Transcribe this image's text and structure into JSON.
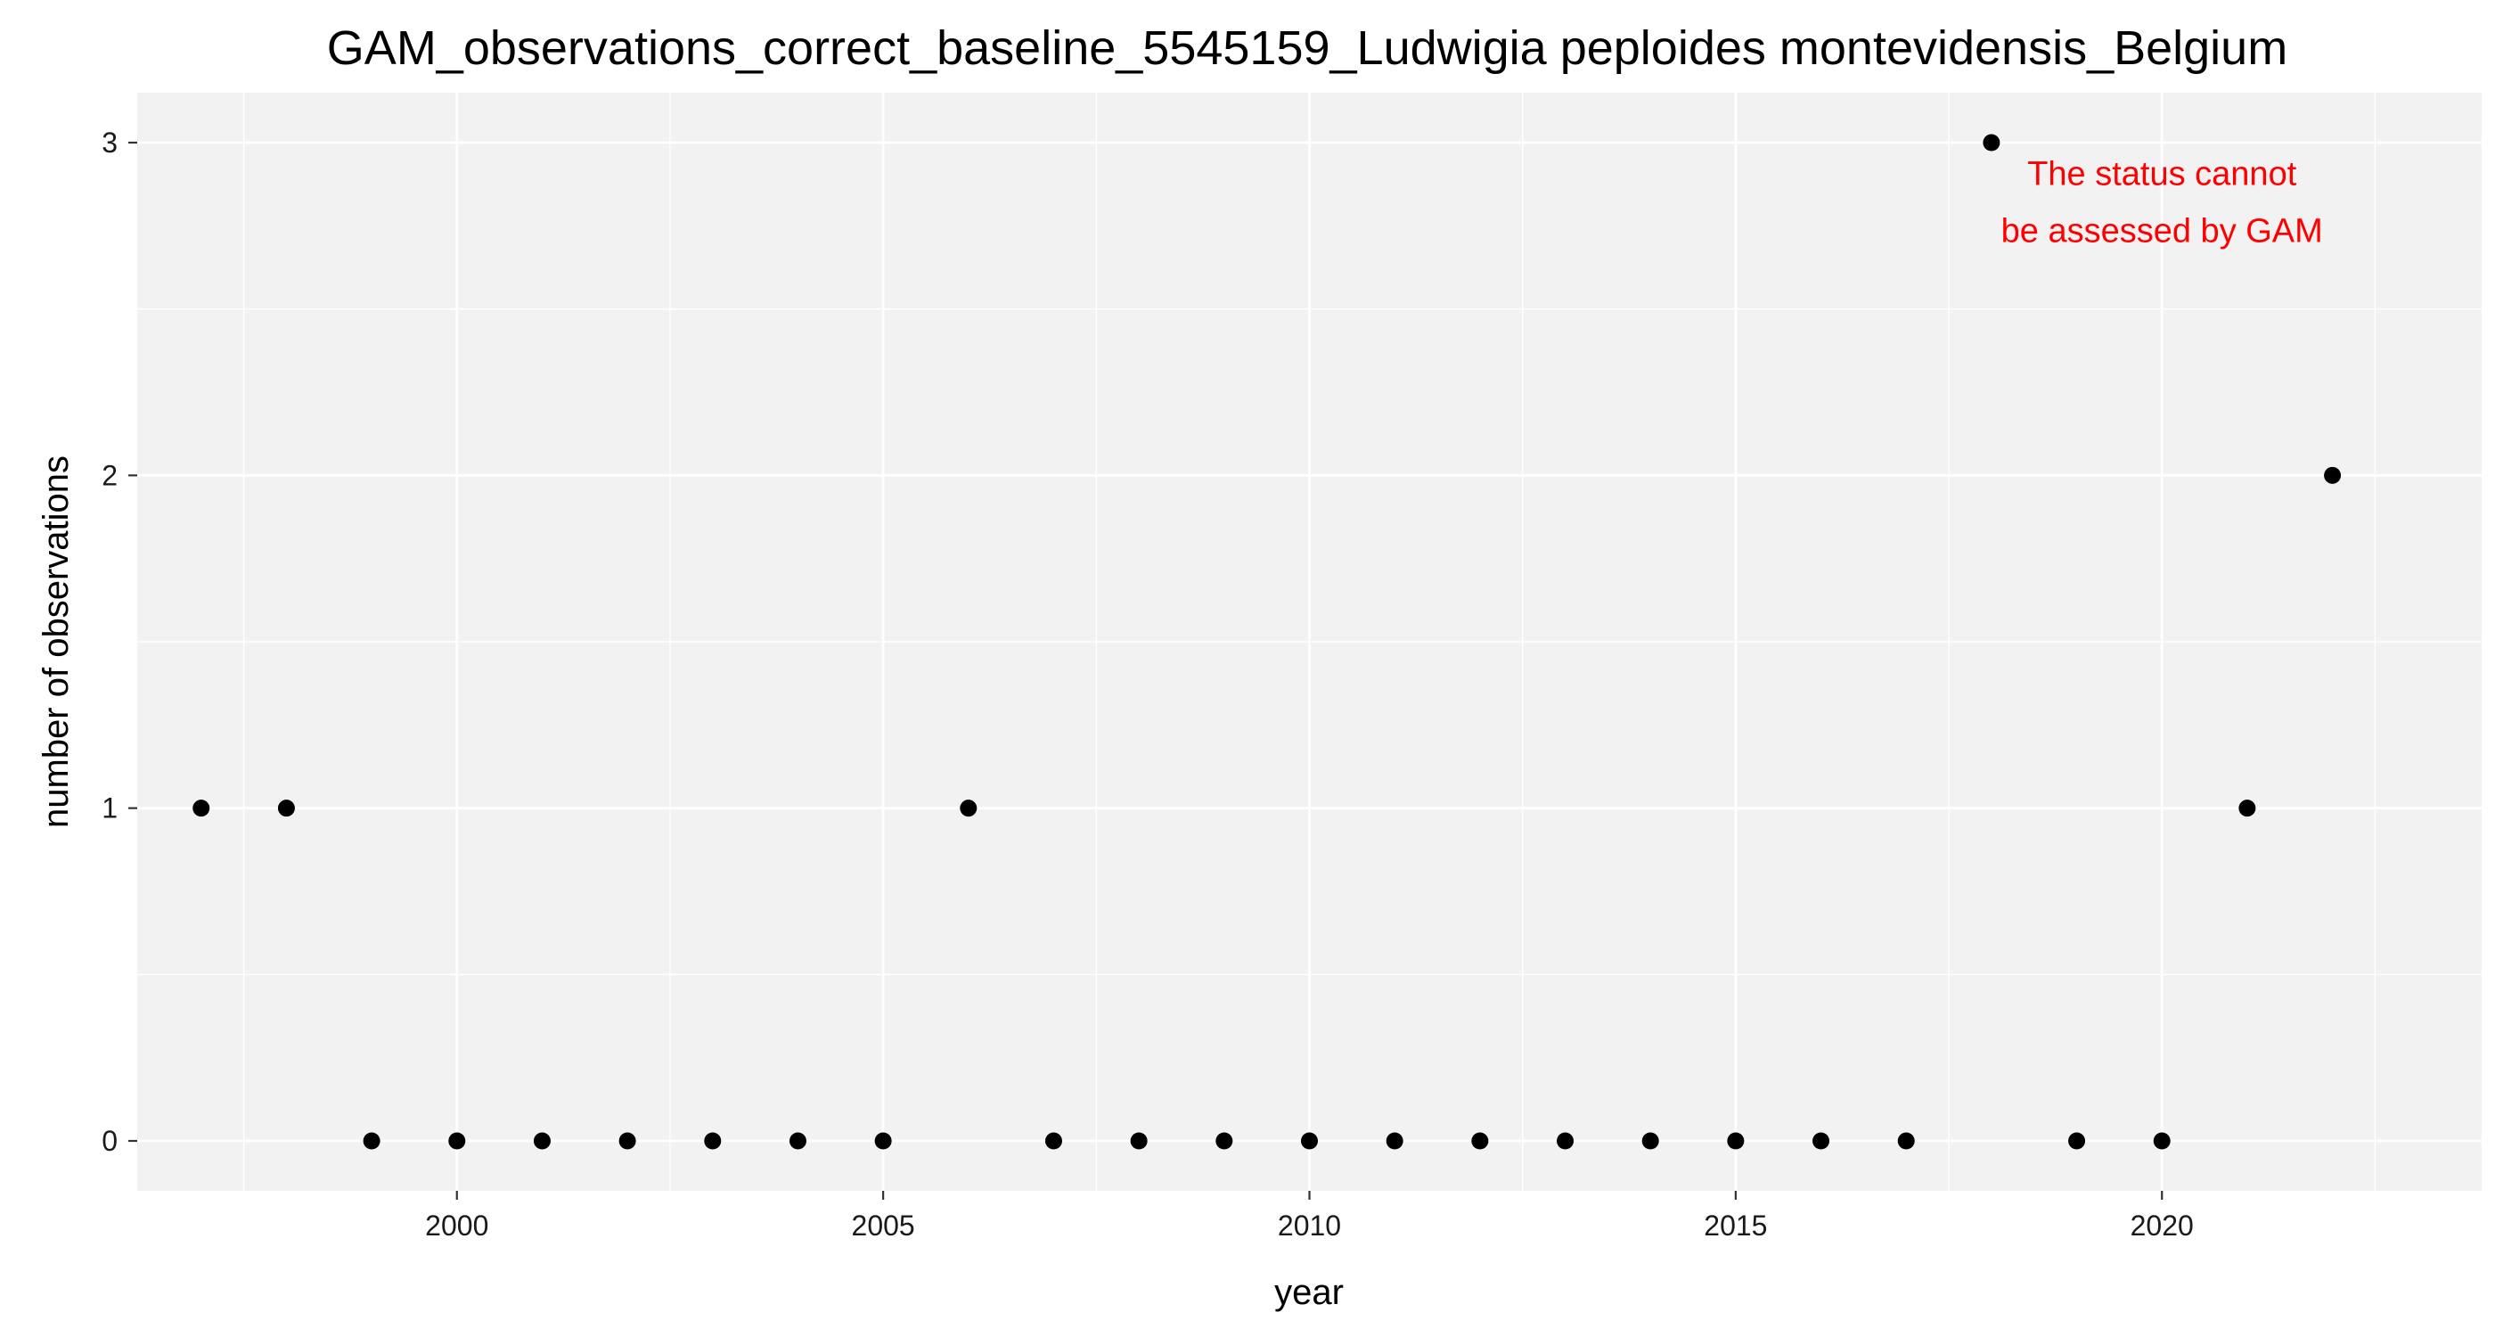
{
  "chart_data": {
    "type": "scatter",
    "title": "GAM_observations_correct_baseline_5545159_Ludwigia peploides montevidensis_Belgium",
    "xlabel": "year",
    "ylabel": "number of observations",
    "xlim": [
      1996.25,
      2023.75
    ],
    "ylim": [
      -0.15,
      3.15
    ],
    "x_ticks": [
      2000,
      2005,
      2010,
      2015,
      2020
    ],
    "x_tick_labels": [
      "2000",
      "2005",
      "2010",
      "2015",
      "2020"
    ],
    "x_minor_ticks": [
      1997.5,
      2002.5,
      2007.5,
      2012.5,
      2017.5,
      2022.5
    ],
    "y_ticks": [
      0,
      1,
      2,
      3
    ],
    "y_tick_labels": [
      "0",
      "1",
      "2",
      "3"
    ],
    "y_minor_ticks": [
      0.5,
      1.5,
      2.5
    ],
    "grid": true,
    "legend": "none",
    "series": [
      {
        "color": "#000000",
        "points": [
          {
            "x": 1997,
            "y": 1
          },
          {
            "x": 1998,
            "y": 1
          },
          {
            "x": 1999,
            "y": 0
          },
          {
            "x": 2000,
            "y": 0
          },
          {
            "x": 2001,
            "y": 0
          },
          {
            "x": 2002,
            "y": 0
          },
          {
            "x": 2003,
            "y": 0
          },
          {
            "x": 2004,
            "y": 0
          },
          {
            "x": 2005,
            "y": 0
          },
          {
            "x": 2006,
            "y": 1
          },
          {
            "x": 2007,
            "y": 0
          },
          {
            "x": 2008,
            "y": 0
          },
          {
            "x": 2009,
            "y": 0
          },
          {
            "x": 2010,
            "y": 0
          },
          {
            "x": 2011,
            "y": 0
          },
          {
            "x": 2012,
            "y": 0
          },
          {
            "x": 2013,
            "y": 0
          },
          {
            "x": 2014,
            "y": 0
          },
          {
            "x": 2015,
            "y": 0
          },
          {
            "x": 2016,
            "y": 0
          },
          {
            "x": 2017,
            "y": 0
          },
          {
            "x": 2018,
            "y": 3
          },
          {
            "x": 2019,
            "y": 0
          },
          {
            "x": 2020,
            "y": 0
          },
          {
            "x": 2021,
            "y": 1
          },
          {
            "x": 2022,
            "y": 2
          }
        ]
      }
    ],
    "annotation": {
      "lines": [
        "The status cannot",
        "be assessed by GAM"
      ],
      "color": "#ff0000",
      "x": 2020,
      "y_top": 2.95
    },
    "colors": {
      "panel_background": "#f2f2f2",
      "grid": "#ffffff",
      "points": "#000000"
    }
  }
}
